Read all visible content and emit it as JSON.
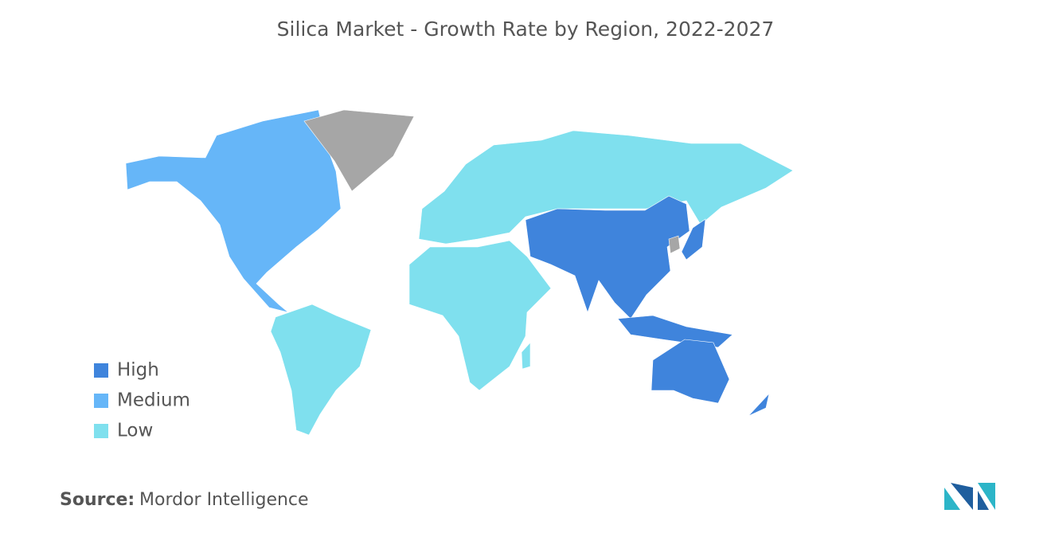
{
  "title": "Silica Market - Growth Rate by Region, 2022-2027",
  "legend": [
    {
      "label": "High",
      "color": "#3f84dc"
    },
    {
      "label": "Medium",
      "color": "#66b6f8"
    },
    {
      "label": "Low",
      "color": "#7fe0ee"
    }
  ],
  "source": {
    "label": "Source:",
    "text": "Mordor Intelligence"
  }
}
